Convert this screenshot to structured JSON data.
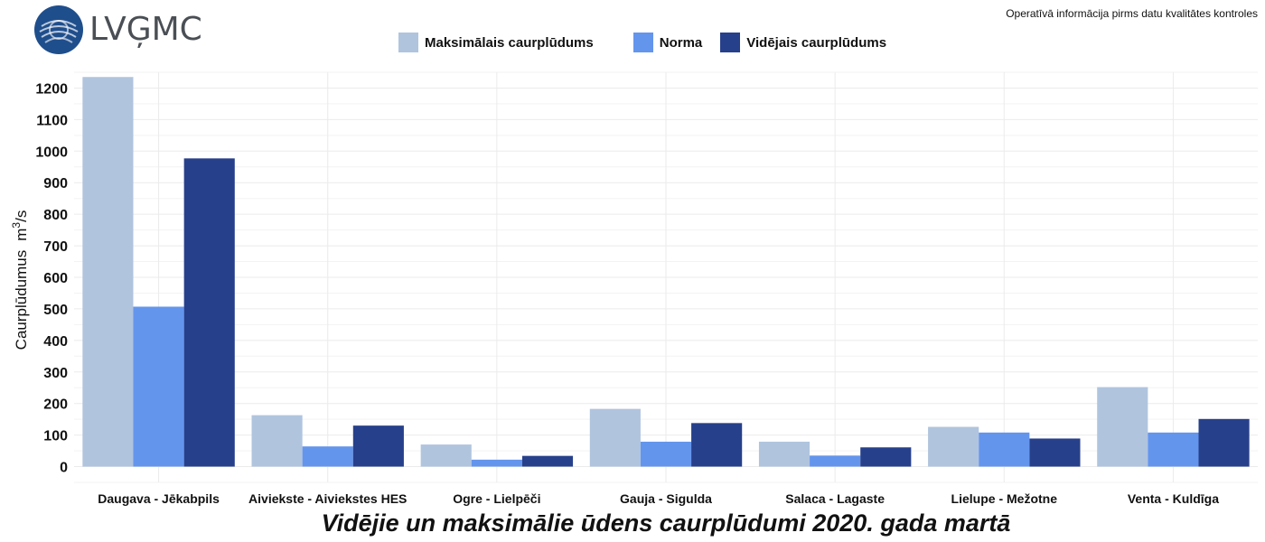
{
  "header": {
    "logo_text": "LVĢMC",
    "note": "Operatīvā informācija pirms datu kvalitātes kontroles"
  },
  "chart_data": {
    "type": "bar",
    "title": "Vidējie un maksimālie ūdens caurplūdumi 2020. gada martā",
    "xlabel": "",
    "ylabel": "Caurplūdumus",
    "ylabel_unit": "m",
    "ylabel_unit_sup": "3",
    "ylabel_unit_tail": "/s",
    "ylim": [
      -50,
      1250
    ],
    "yticks": [
      0,
      100,
      200,
      300,
      400,
      500,
      600,
      700,
      800,
      900,
      1000,
      1100,
      1200
    ],
    "grid": true,
    "legend_position": "top",
    "categories": [
      "Daugava - Jēkabpils",
      "Aiviekste - Aiviekstes HES",
      "Ogre - Lielpēči",
      "Gauja - Sigulda",
      "Salaca - Lagaste",
      "Lielupe - Mežotne",
      "Venta - Kuldīga"
    ],
    "series": [
      {
        "name": "Maksimālais caurplūdums",
        "color": "#b0c4de",
        "values": [
          1235,
          163,
          70,
          183,
          79,
          126,
          252
        ]
      },
      {
        "name": "Norma",
        "color": "#6495ed",
        "values": [
          507,
          64,
          22,
          79,
          35,
          108,
          108
        ]
      },
      {
        "name": "Vidējais caurplūdums",
        "color": "#27408b",
        "values": [
          977,
          130,
          34,
          138,
          61,
          89,
          151
        ]
      }
    ]
  }
}
